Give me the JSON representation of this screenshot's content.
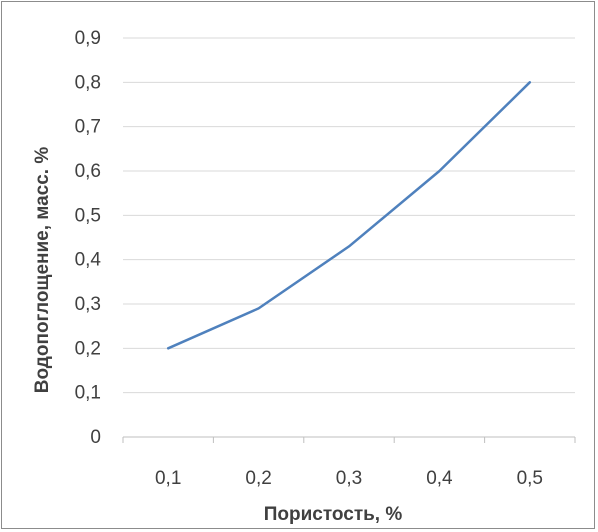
{
  "chart_data": {
    "type": "line",
    "title": "",
    "xlabel": "Пористость, %",
    "ylabel": "Водопоглощение, масс. %",
    "categories": [
      "0,1",
      "0,2",
      "0,3",
      "0,4",
      "0,5"
    ],
    "x": [
      0.1,
      0.2,
      0.3,
      0.4,
      0.5
    ],
    "y_ticks": [
      "0",
      "0,1",
      "0,2",
      "0,3",
      "0,4",
      "0,5",
      "0,6",
      "0,7",
      "0,8",
      "0,9"
    ],
    "ylim": [
      0,
      0.9
    ],
    "grid": true,
    "legend": "none",
    "colors": {
      "line": "#4f81bd",
      "grid": "#d9d9d9",
      "axis": "#bfbfbf"
    },
    "series": [
      {
        "values": [
          0.2,
          0.29,
          0.43,
          0.6,
          0.8
        ]
      }
    ]
  }
}
